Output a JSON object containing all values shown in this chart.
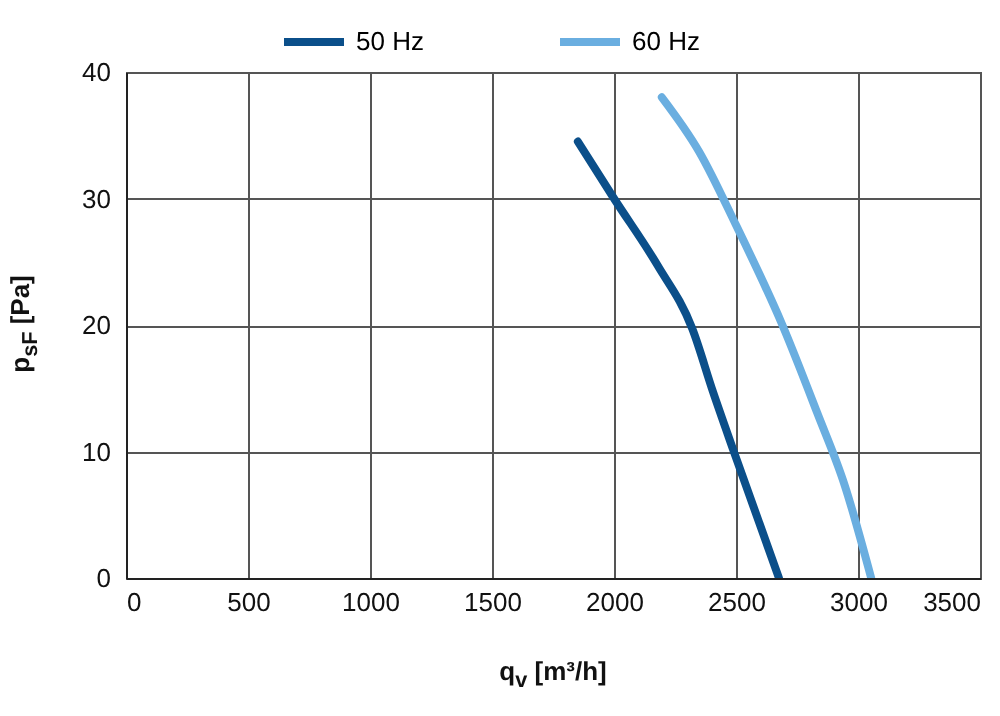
{
  "chart_data": {
    "type": "line",
    "xlabel": "q$_{v}$ [m³/h]",
    "ylabel": "p$_{sF}$ [Pa]",
    "xlim": [
      0,
      3500
    ],
    "xticks": [
      0,
      500,
      1000,
      1500,
      2000,
      2500,
      3000,
      3500
    ],
    "ylim": [
      0,
      40
    ],
    "yticks": [
      0,
      10,
      20,
      30,
      40
    ],
    "grid": true,
    "legend": "top",
    "line_style": "solid",
    "series": [
      {
        "name": "50 Hz",
        "color": "#0b4f8a",
        "x": [
          1852,
          2000,
          2179,
          2321,
          2406,
          2491,
          2676
        ],
        "values": [
          34.5,
          30,
          24.7,
          19.7,
          14.7,
          10,
          0
        ]
      },
      {
        "name": "60 Hz",
        "color": "#6aaee0",
        "x": [
          2196,
          2349,
          2500,
          2690,
          2832,
          2946,
          3054
        ],
        "values": [
          38,
          33.7,
          27.9,
          20,
          13.1,
          7.3,
          0
        ]
      }
    ]
  }
}
